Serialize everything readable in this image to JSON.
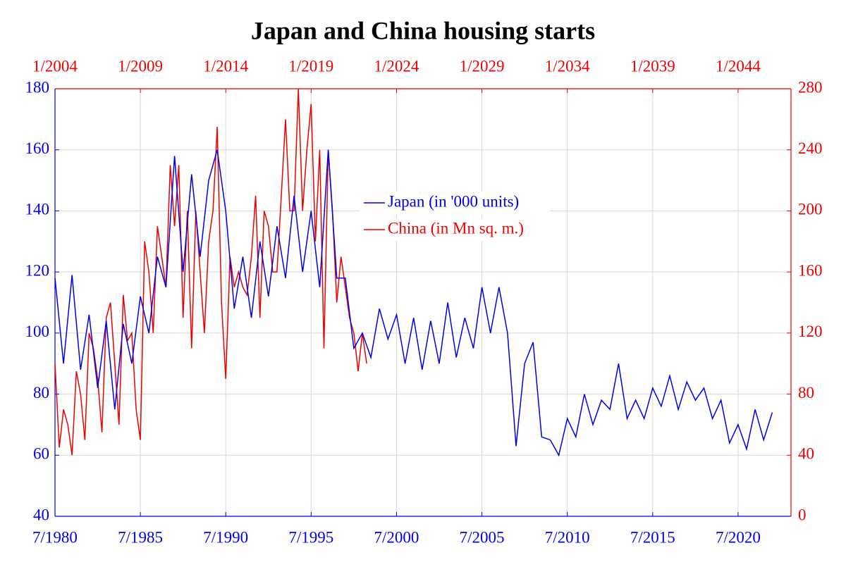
{
  "chart_data": {
    "type": "line",
    "title": "Japan and China housing starts",
    "xlim": [
      1980.5,
      2023.6
    ],
    "xticks": [
      {
        "value": 1980.5,
        "label": "7/1980"
      },
      {
        "value": 1985.5,
        "label": "7/1985"
      },
      {
        "value": 1990.5,
        "label": "7/1990"
      },
      {
        "value": 1995.5,
        "label": "7/1995"
      },
      {
        "value": 2000.5,
        "label": "7/2000"
      },
      {
        "value": 2005.5,
        "label": "7/2005"
      },
      {
        "value": 2010.5,
        "label": "7/2010"
      },
      {
        "value": 2015.5,
        "label": "7/2015"
      },
      {
        "value": 2020.5,
        "label": "7/2020"
      }
    ],
    "x2lim": [
      2004.0,
      2047.1
    ],
    "x2ticks": [
      {
        "value": 2004,
        "label": "1/2004"
      },
      {
        "value": 2009,
        "label": "1/2009"
      },
      {
        "value": 2014,
        "label": "1/2014"
      },
      {
        "value": 2019,
        "label": "1/2019"
      },
      {
        "value": 2024,
        "label": "1/2024"
      },
      {
        "value": 2029,
        "label": "1/2029"
      },
      {
        "value": 2034,
        "label": "1/2034"
      },
      {
        "value": 2039,
        "label": "1/2039"
      },
      {
        "value": 2044,
        "label": "1/2044"
      }
    ],
    "ylim": [
      40,
      180
    ],
    "yticks": [
      40,
      60,
      80,
      100,
      120,
      140,
      160,
      180
    ],
    "y2lim": [
      0,
      280
    ],
    "y2ticks": [
      0,
      40,
      80,
      120,
      160,
      200,
      240,
      280
    ],
    "grid": true,
    "series": [
      {
        "name": "Japan (in '000 units)",
        "color": "#0000ee",
        "x": [
          1980.5,
          1981,
          1981.5,
          1982,
          1982.5,
          1983,
          1983.5,
          1984,
          1984.5,
          1985,
          1985.5,
          1986,
          1986.5,
          1987,
          1987.5,
          1988,
          1988.5,
          1989,
          1989.5,
          1990,
          1990.5,
          1991,
          1991.5,
          1992,
          1992.5,
          1993,
          1993.5,
          1994,
          1994.5,
          1995,
          1995.5,
          1996,
          1996.5,
          1997,
          1997.5,
          1998,
          1998.5,
          1999,
          1999.5,
          2000,
          2000.5,
          2001,
          2001.5,
          2002,
          2002.5,
          2003,
          2003.5,
          2004,
          2004.5,
          2005,
          2005.5,
          2006,
          2006.5,
          2007,
          2007.5,
          2008,
          2008.5,
          2009,
          2009.5,
          2010,
          2010.5,
          2011,
          2011.5,
          2012,
          2012.5,
          2013,
          2013.5,
          2014,
          2014.5,
          2015,
          2015.5,
          2016,
          2016.5,
          2017,
          2017.5,
          2018,
          2018.5,
          2019,
          2019.5,
          2020,
          2020.5,
          2021,
          2021.5,
          2022,
          2022.5
        ],
        "values": [
          118,
          90,
          119,
          88,
          106,
          82,
          104,
          75,
          103,
          90,
          112,
          100,
          125,
          115,
          158,
          120,
          152,
          125,
          150,
          160,
          140,
          108,
          125,
          105,
          130,
          112,
          135,
          118,
          145,
          120,
          140,
          115,
          160,
          118,
          118,
          95,
          100,
          92,
          108,
          98,
          106,
          90,
          105,
          88,
          104,
          90,
          110,
          92,
          105,
          95,
          115,
          100,
          115,
          100,
          63,
          90,
          97,
          66,
          65,
          60,
          72,
          66,
          80,
          70,
          78,
          75,
          90,
          72,
          78,
          72,
          82,
          76,
          86,
          75,
          84,
          78,
          82,
          72,
          78,
          64,
          70,
          62,
          75,
          65,
          74
        ]
      },
      {
        "name": "China (in Mn sq. m.)",
        "color": "#ee0000",
        "axis": "y2",
        "xaxis": "x2",
        "x": [
          2004,
          2004.25,
          2004.5,
          2004.75,
          2005,
          2005.25,
          2005.5,
          2005.75,
          2006,
          2006.25,
          2006.5,
          2006.75,
          2007,
          2007.25,
          2007.5,
          2007.75,
          2008,
          2008.25,
          2008.5,
          2008.75,
          2009,
          2009.25,
          2009.5,
          2009.75,
          2010,
          2010.25,
          2010.5,
          2010.75,
          2011,
          2011.25,
          2011.5,
          2011.75,
          2012,
          2012.25,
          2012.5,
          2012.75,
          2013,
          2013.25,
          2013.5,
          2013.75,
          2014,
          2014.25,
          2014.5,
          2014.75,
          2015,
          2015.25,
          2015.5,
          2015.75,
          2016,
          2016.25,
          2016.5,
          2016.75,
          2017,
          2017.25,
          2017.5,
          2017.75,
          2018,
          2018.25,
          2018.5,
          2018.75,
          2019,
          2019.25,
          2019.5,
          2019.75,
          2020,
          2020.25,
          2020.5,
          2020.75,
          2021,
          2021.25,
          2021.5,
          2021.75,
          2022,
          2022.25
        ],
        "values": [
          100,
          45,
          70,
          60,
          40,
          95,
          80,
          50,
          120,
          110,
          90,
          55,
          130,
          140,
          100,
          60,
          145,
          115,
          120,
          70,
          50,
          180,
          160,
          120,
          190,
          170,
          150,
          230,
          190,
          230,
          130,
          200,
          110,
          200,
          160,
          120,
          180,
          200,
          255,
          140,
          90,
          170,
          150,
          160,
          150,
          145,
          170,
          210,
          130,
          200,
          190,
          160,
          160,
          210,
          260,
          200,
          200,
          280,
          200,
          240,
          270,
          180,
          240,
          110,
          240,
          200,
          140,
          170,
          150,
          130,
          120,
          95,
          120,
          100
        ]
      }
    ]
  }
}
